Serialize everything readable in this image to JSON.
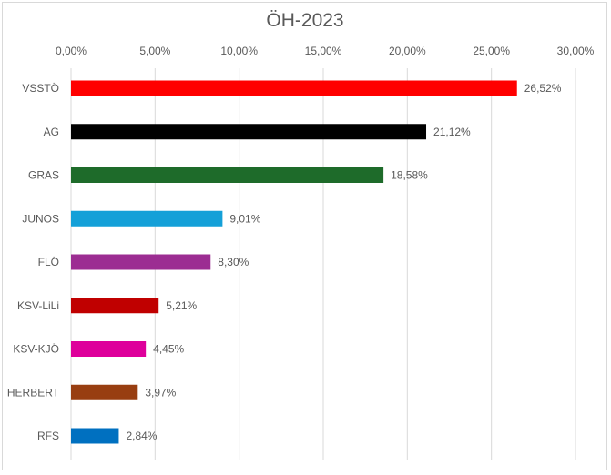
{
  "chart_data": {
    "type": "bar",
    "orientation": "horizontal",
    "title": "ÖH-2023",
    "categories": [
      "VSSTÖ",
      "AG",
      "GRAS",
      "JUNOS",
      "FLÖ",
      "KSV-LiLi",
      "KSV-KJÖ",
      "HERBERT",
      "RFS"
    ],
    "values": [
      26.52,
      21.12,
      18.58,
      9.01,
      8.3,
      5.21,
      4.45,
      3.97,
      2.84
    ],
    "data_labels": [
      "26,52%",
      "21,12%",
      "18,58%",
      "9,01%",
      "8,30%",
      "5,21%",
      "4,45%",
      "3,97%",
      "2,84%"
    ],
    "colors": [
      "#FF0000",
      "#000000",
      "#1E6B2A",
      "#14A0D8",
      "#9C2D92",
      "#C00000",
      "#DE009B",
      "#983E11",
      "#0070C0"
    ],
    "x_ticks": [
      "0,00%",
      "5,00%",
      "10,00%",
      "15,00%",
      "20,00%",
      "25,00%",
      "30,00%"
    ],
    "xlim": [
      0,
      30
    ],
    "x_axis_position": "top",
    "grid": true,
    "legend": "none"
  }
}
